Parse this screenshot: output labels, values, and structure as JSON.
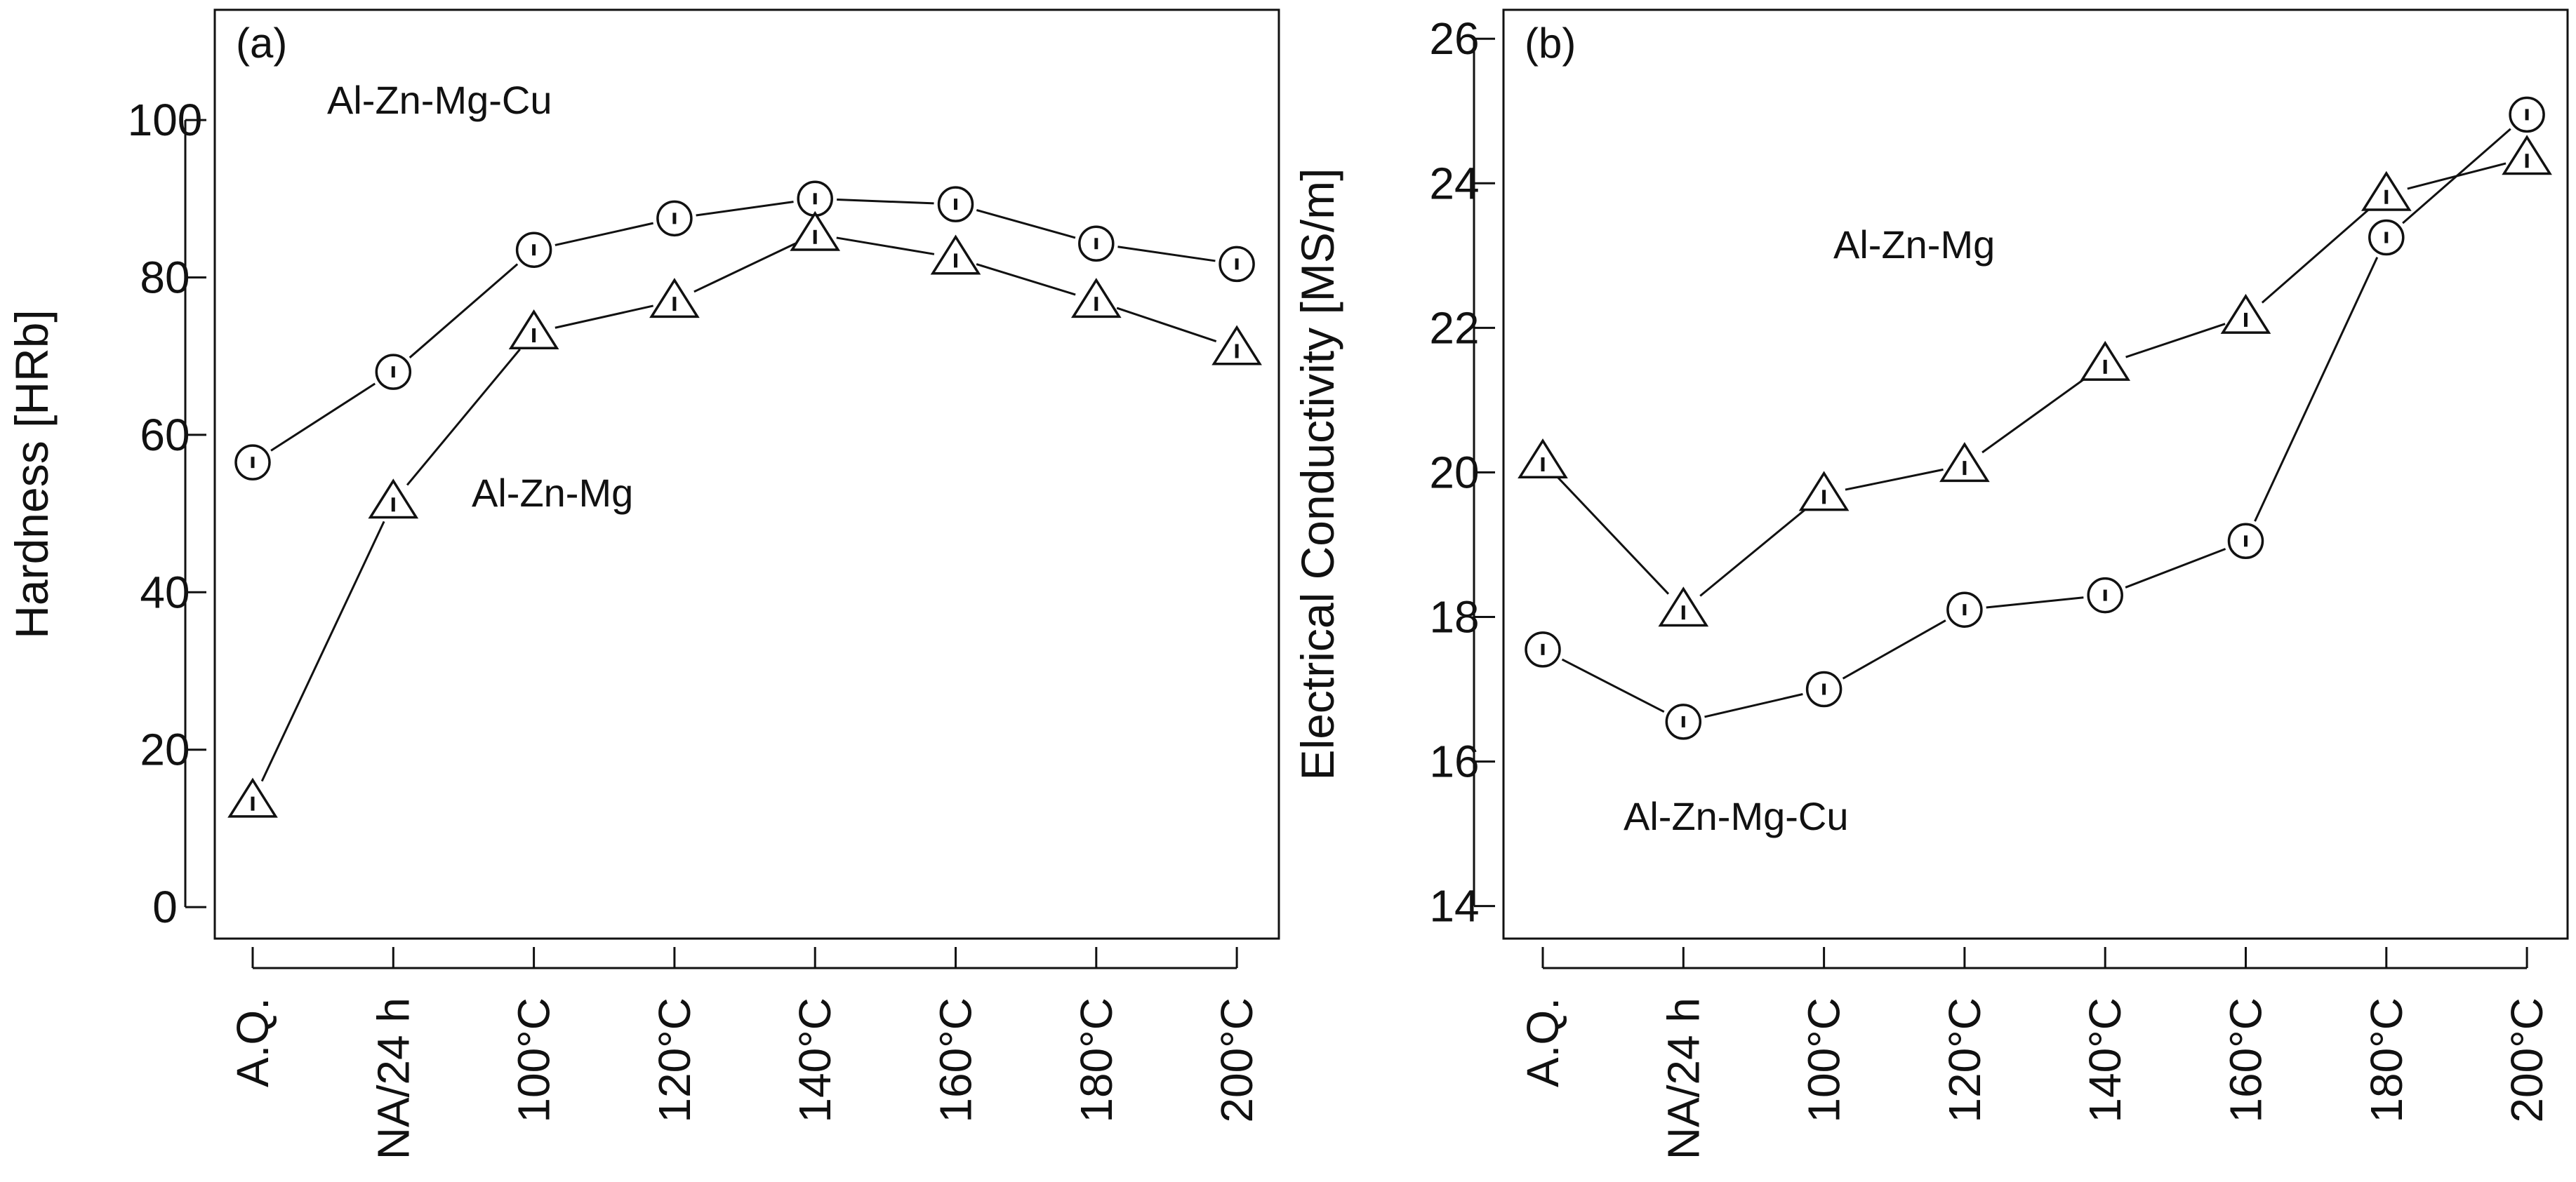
{
  "chart_data": [
    {
      "type": "line",
      "panel_label": "(a)",
      "title": "",
      "xlabel": "",
      "ylabel": "Hardness [HRb]",
      "categories": [
        "A.Q.",
        "NA/24 h",
        "100°C",
        "120°C",
        "140°C",
        "160°C",
        "180°C",
        "200°C"
      ],
      "ylim": [
        -4,
        114
      ],
      "yticks": [
        0,
        20,
        40,
        60,
        80,
        100
      ],
      "series": [
        {
          "name": "Al-Zn-Mg-Cu",
          "marker": "circle",
          "values": [
            56.5,
            68,
            83.5,
            87.5,
            90,
            89.3,
            84.3,
            81.7
          ]
        },
        {
          "name": "Al-Zn-Mg",
          "marker": "triangle",
          "values": [
            13.5,
            51.5,
            73,
            77,
            85.5,
            82.5,
            77,
            71
          ]
        }
      ]
    },
    {
      "type": "line",
      "panel_label": "(b)",
      "title": "",
      "xlabel": "",
      "ylabel": "Electrical Conductivity [MS/m]",
      "categories": [
        "A.Q.",
        "NA/24 h",
        "100°C",
        "120°C",
        "140°C",
        "160°C",
        "180°C",
        "200°C"
      ],
      "ylim": [
        13.55,
        26.4
      ],
      "yticks": [
        14,
        16,
        18,
        20,
        22,
        24,
        26
      ],
      "series": [
        {
          "name": "Al-Zn-Mg",
          "marker": "triangle",
          "values": [
            20.15,
            18.1,
            19.7,
            20.1,
            21.5,
            22.15,
            23.85,
            24.35
          ]
        },
        {
          "name": "Al-Zn-Mg-Cu",
          "marker": "circle",
          "values": [
            17.55,
            16.55,
            17.0,
            18.1,
            18.3,
            19.05,
            23.25,
            24.95
          ]
        }
      ]
    }
  ]
}
